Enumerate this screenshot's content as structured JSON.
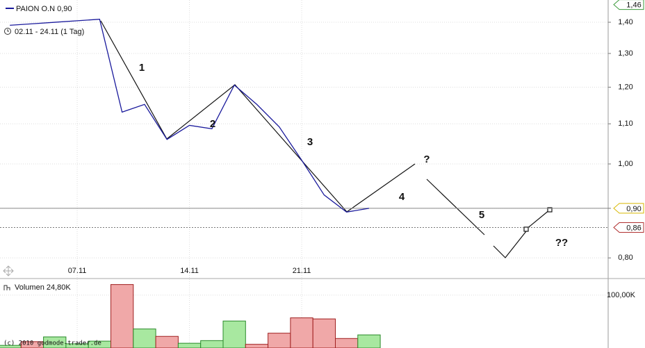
{
  "chart_data": [
    {
      "type": "line",
      "subtitle": "02.11 - 24.11 (1 Tag)",
      "categories": [
        null,
        null,
        null,
        "07.11",
        null,
        null,
        null,
        null,
        "14.11",
        null,
        null,
        null,
        null,
        "21.11",
        null,
        null,
        null
      ],
      "series": [
        {
          "name": "PAION O.N 0,90",
          "color": "#1a1a9c",
          "values": [
            1.39,
            1.395,
            1.4,
            1.405,
            1.41,
            1.131,
            1.152,
            1.06,
            1.096,
            1.087,
            1.206,
            1.152,
            1.092,
            1.009,
            0.929,
            0.892,
            0.9
          ]
        }
      ],
      "yscale": "log",
      "ylim": [
        0.763,
        1.476
      ],
      "yticks": [
        {
          "value": 0.8,
          "label": "0,80"
        },
        {
          "value": 0.9,
          "label": "0,90"
        },
        {
          "value": 1.0,
          "label": "1,00"
        },
        {
          "value": 1.1,
          "label": "1,10"
        },
        {
          "value": 1.2,
          "label": "1,20"
        },
        {
          "value": 1.3,
          "label": "1,30"
        },
        {
          "value": 1.4,
          "label": "1,40"
        }
      ],
      "grid": true,
      "price_markers": [
        {
          "value": 1.46,
          "label": "1,46",
          "color": "#3a9a3a",
          "line": "none"
        },
        {
          "value": 0.9,
          "label": "0,90",
          "color": "#d8b800",
          "line": "solid"
        },
        {
          "value": 0.86,
          "label": "0,86",
          "color": "#b03030",
          "line": "dotted"
        }
      ],
      "annotations": [
        "1",
        "2",
        "3",
        "?",
        "4",
        "5",
        "??"
      ]
    },
    {
      "type": "bar",
      "title": "Volumen 24,80K",
      "values": [
        5,
        12,
        21,
        8,
        13,
        120,
        36,
        22,
        9,
        14,
        51,
        7,
        28,
        57,
        55,
        18,
        24.8
      ],
      "colors": [
        "#a8e8a0",
        "#f0a8a8",
        "#a8e8a0",
        "#a8e8a0",
        "#a8e8a0",
        "#f0a8a8",
        "#a8e8a0",
        "#f0a8a8",
        "#a8e8a0",
        "#a8e8a0",
        "#a8e8a0",
        "#f0a8a8",
        "#f0a8a8",
        "#f0a8a8",
        "#f0a8a8",
        "#f0a8a8",
        "#a8e8a0"
      ],
      "ylim": [
        0,
        130
      ],
      "yticks": [
        {
          "value": 100,
          "label": "100,00K"
        }
      ],
      "grid": true
    }
  ],
  "copyright": "(c) 2010 godmode-trader.de"
}
